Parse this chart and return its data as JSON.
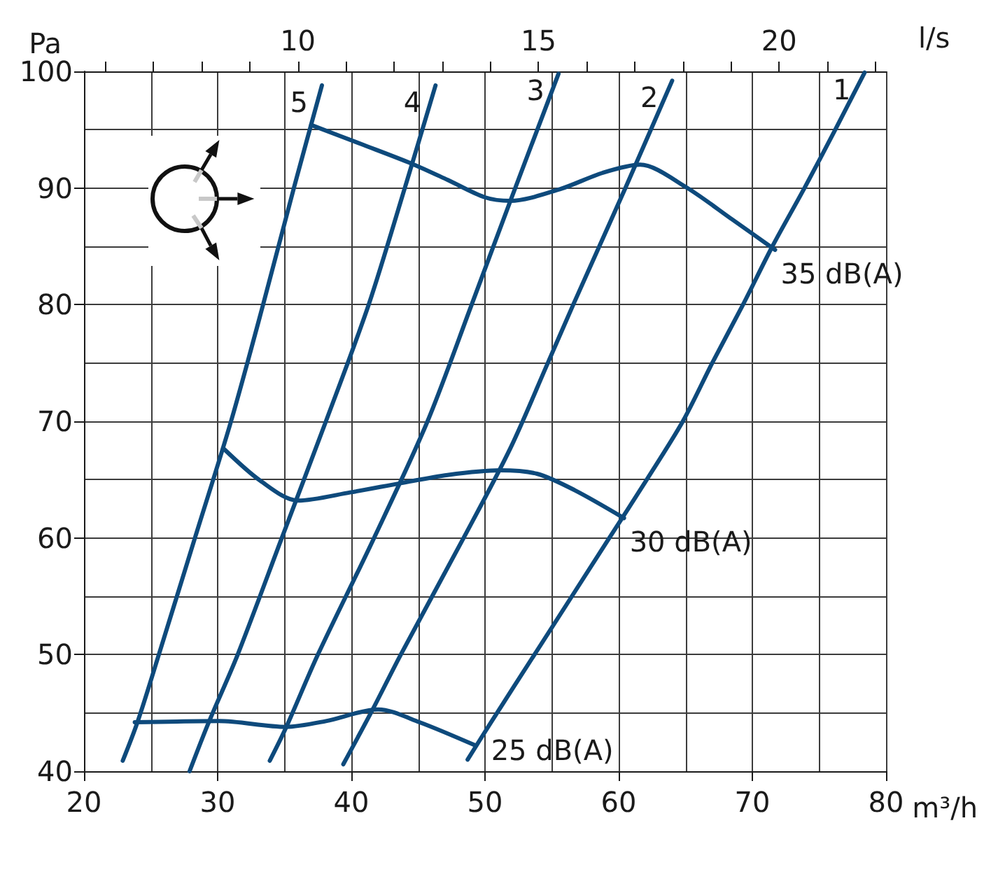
{
  "chart_data": {
    "type": "line",
    "xlabel": "m³/h",
    "ylabel": "Pa",
    "x2label": "l/s",
    "xlim": [
      20,
      80
    ],
    "xticks": [
      20,
      {
        "value": 25,
        "label": null
      },
      30,
      {
        "value": 35,
        "label": null
      },
      40,
      {
        "value": 45,
        "label": null
      },
      50,
      {
        "value": 55,
        "label": null
      },
      60,
      {
        "value": 65,
        "label": null
      },
      70,
      {
        "value": 75,
        "label": null
      },
      80
    ],
    "ylim": [
      40,
      100
    ],
    "yticks": [
      40,
      {
        "value": 45,
        "label": null
      },
      50,
      {
        "value": 55,
        "label": null
      },
      60,
      {
        "value": 65,
        "label": null
      },
      70,
      {
        "value": 75,
        "label": null
      },
      80,
      {
        "value": 85,
        "label": null
      },
      90,
      {
        "value": 95,
        "label": null
      },
      100
    ],
    "x2lim": [
      5.556,
      22.222
    ],
    "x2ticks": [
      {
        "value": 6,
        "label": null
      },
      {
        "value": 7,
        "label": null
      },
      {
        "value": 8,
        "label": null
      },
      {
        "value": 9,
        "label": null
      },
      10,
      {
        "value": 11,
        "label": null
      },
      {
        "value": 12,
        "label": null
      },
      {
        "value": 13,
        "label": null
      },
      {
        "value": 14,
        "label": null
      },
      15,
      {
        "value": 16,
        "label": null
      },
      {
        "value": 17,
        "label": null
      },
      {
        "value": 18,
        "label": null
      },
      {
        "value": 19,
        "label": null
      },
      20,
      {
        "value": 21,
        "label": null
      },
      {
        "value": 22,
        "label": null
      }
    ],
    "grid": true,
    "legend": false,
    "marker": "none",
    "line_style": "solid",
    "series": [
      {
        "name": "1",
        "color": "#0e4a7c",
        "x": [
          48.7,
          50.4,
          53.7,
          59.3,
          62.1,
          64.8,
          67.0,
          69.3,
          71.5,
          73.9,
          76.2,
          78.4
        ],
        "values": [
          41.0,
          44.1,
          50,
          60,
          65,
          70,
          75,
          80,
          85,
          90,
          95,
          99.9
        ]
      },
      {
        "name": "2",
        "color": "#0e4a7c",
        "x": [
          39.4,
          41.6,
          43.7,
          48.4,
          51.9,
          54.7,
          56.6,
          60.5,
          64.0
        ],
        "values": [
          40.6,
          45.3,
          50,
          60,
          67.7,
          75,
          80,
          90,
          99.2
        ]
      },
      {
        "name": "3",
        "color": "#0e4a7c",
        "x": [
          33.9,
          35.1,
          37.5,
          41.7,
          45.7,
          49.0,
          51.9,
          55.5
        ],
        "values": [
          40.9,
          43.7,
          50,
          60,
          70,
          80,
          88.9,
          99.8
        ]
      },
      {
        "name": "4",
        "color": "#0e4a7c",
        "x": [
          27.9,
          29.3,
          31.5,
          34.8,
          38.1,
          41.3,
          44.0,
          46.3
        ],
        "values": [
          40.0,
          44.1,
          50,
          60,
          70,
          80,
          90,
          98.8
        ]
      },
      {
        "name": "5",
        "color": "#0e4a7c",
        "x": [
          22.9,
          24.0,
          25.6,
          28.3,
          31.0,
          33.4,
          35.7,
          37.8
        ],
        "values": [
          40.9,
          44.2,
          50,
          60,
          70,
          80,
          90,
          98.8
        ]
      },
      {
        "name": "35 dB(A)",
        "color": "#0e4a7c",
        "x": [
          37.0,
          40.9,
          44.5,
          47.2,
          50.0,
          51.9,
          55.6,
          58.8,
          61.6,
          65.0,
          68.5,
          71.7
        ],
        "values": [
          95.4,
          93.7,
          92.1,
          90.7,
          89.2,
          88.9,
          89.9,
          91.3,
          92.0,
          90.1,
          87.3,
          84.7
        ]
      },
      {
        "name": "30 dB(A)",
        "color": "#0e4a7c",
        "x": [
          30.5,
          33.2,
          36.0,
          39.9,
          43.7,
          47.2,
          51.1,
          53.9,
          56.7,
          60.4
        ],
        "values": [
          67.6,
          64.9,
          63.2,
          63.9,
          64.7,
          65.4,
          65.8,
          65.5,
          64.1,
          61.7
        ]
      },
      {
        "name": "25 dB(A)",
        "color": "#0e4a7c",
        "x": [
          23.8,
          30.1,
          35.1,
          38.1,
          42.0,
          45.1,
          49.3
        ],
        "values": [
          44.2,
          44.3,
          43.8,
          44.3,
          45.3,
          44.2,
          42.2
        ]
      }
    ]
  }
}
